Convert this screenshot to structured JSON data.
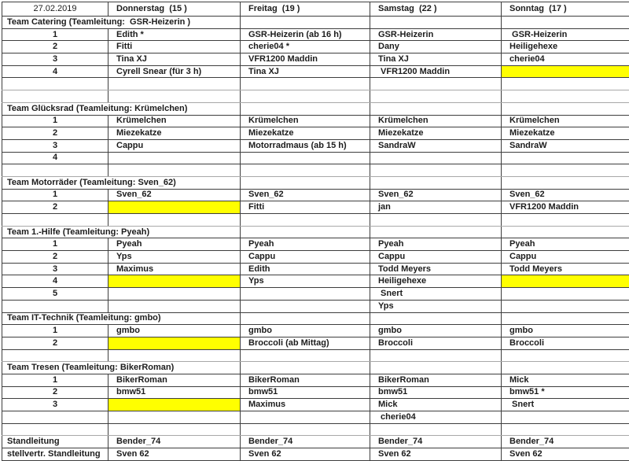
{
  "colors": {
    "highlight": "#ffff00",
    "grid": "#3e3e3e",
    "grid_light": "#a8a8a8",
    "text": "#1c1c1c"
  },
  "header": {
    "date": "27.02.2019",
    "days": [
      "Donnerstag  (15 )",
      "Freitag  (19 )",
      "Samstag  (22 )",
      "Sonntag  (17 )"
    ]
  },
  "rows": [
    {
      "t": "head"
    },
    {
      "t": "section",
      "title": "Team Catering (Teamleitung:  GSR-Heizerin )"
    },
    {
      "t": "data",
      "num": "1",
      "cells": [
        "Edith *",
        "GSR-Heizerin (ab 16 h)",
        "GSR-Heizerin",
        " GSR-Heizerin"
      ],
      "hl": [
        0,
        0,
        0,
        0
      ]
    },
    {
      "t": "data",
      "num": "2",
      "cells": [
        "Fitti",
        "cherie04 *",
        "Dany",
        "Heiligehexe"
      ],
      "hl": [
        0,
        0,
        0,
        0
      ]
    },
    {
      "t": "data",
      "num": "3",
      "cells": [
        "Tina XJ",
        "VFR1200 Maddin",
        "Tina XJ",
        "cherie04"
      ],
      "hl": [
        0,
        0,
        0,
        0
      ]
    },
    {
      "t": "data",
      "num": "4",
      "cells": [
        "Cyrell Snear (für 3 h)",
        "Tina XJ",
        " VFR1200 Maddin",
        ""
      ],
      "hl": [
        0,
        0,
        0,
        1
      ]
    },
    {
      "t": "spacer"
    },
    {
      "t": "spacer"
    },
    {
      "t": "section",
      "title": "Team Glücksrad (Teamleitung: Krümelchen)"
    },
    {
      "t": "data",
      "num": "1",
      "cells": [
        "Krümelchen",
        "Krümelchen",
        "Krümelchen",
        "Krümelchen"
      ],
      "hl": [
        0,
        0,
        0,
        0
      ]
    },
    {
      "t": "data",
      "num": "2",
      "cells": [
        "Miezekatze",
        "Miezekatze",
        "Miezekatze",
        "Miezekatze"
      ],
      "hl": [
        0,
        0,
        0,
        0
      ]
    },
    {
      "t": "data",
      "num": "3",
      "cells": [
        "Cappu",
        "Motorradmaus (ab 15 h)",
        "SandraW",
        "SandraW"
      ],
      "hl": [
        0,
        0,
        0,
        0
      ]
    },
    {
      "t": "data",
      "num": "4",
      "cells": [
        "",
        "",
        "",
        ""
      ],
      "hl": [
        0,
        0,
        0,
        0
      ]
    },
    {
      "t": "spacer"
    },
    {
      "t": "section",
      "title": "Team Motorräder (Teamleitung: Sven_62)"
    },
    {
      "t": "data",
      "num": "1",
      "cells": [
        "Sven_62",
        "Sven_62",
        "Sven_62",
        "Sven_62"
      ],
      "hl": [
        0,
        0,
        0,
        0
      ]
    },
    {
      "t": "data",
      "num": "2",
      "cells": [
        "",
        "Fitti",
        "jan",
        "VFR1200 Maddin"
      ],
      "hl": [
        1,
        0,
        0,
        0
      ]
    },
    {
      "t": "spacer"
    },
    {
      "t": "section",
      "title": "Team 1.-Hilfe (Teamleitung: Pyeah)"
    },
    {
      "t": "data",
      "num": "1",
      "cells": [
        "Pyeah",
        "Pyeah",
        "Pyeah",
        "Pyeah"
      ],
      "hl": [
        0,
        0,
        0,
        0
      ]
    },
    {
      "t": "data",
      "num": "2",
      "cells": [
        "Yps",
        "Cappu",
        "Cappu",
        "Cappu"
      ],
      "hl": [
        0,
        0,
        0,
        0
      ]
    },
    {
      "t": "data",
      "num": "3",
      "cells": [
        "Maximus",
        "Edith",
        "Todd Meyers",
        "Todd Meyers"
      ],
      "hl": [
        0,
        0,
        0,
        0
      ]
    },
    {
      "t": "data",
      "num": "4",
      "cells": [
        "",
        "Yps",
        "Heiligehexe",
        ""
      ],
      "hl": [
        1,
        0,
        0,
        1
      ]
    },
    {
      "t": "data",
      "num": "5",
      "cells": [
        "",
        "",
        " Snert",
        ""
      ],
      "hl": [
        0,
        0,
        0,
        0
      ]
    },
    {
      "t": "data",
      "num": "",
      "cells": [
        "",
        "",
        "Yps",
        ""
      ],
      "hl": [
        0,
        0,
        0,
        0
      ]
    },
    {
      "t": "section",
      "title": "Team IT-Technik (Teamleitung: gmbo)"
    },
    {
      "t": "data",
      "num": "1",
      "cells": [
        "gmbo",
        "gmbo",
        "gmbo",
        "gmbo"
      ],
      "hl": [
        0,
        0,
        0,
        0
      ]
    },
    {
      "t": "data",
      "num": "2",
      "cells": [
        "",
        "Broccoli (ab Mittag)",
        "Broccoli",
        "Broccoli"
      ],
      "hl": [
        1,
        0,
        0,
        0
      ]
    },
    {
      "t": "spacer"
    },
    {
      "t": "section",
      "title": "Team Tresen (Teamleitung: BikerRoman)"
    },
    {
      "t": "data",
      "num": "1",
      "cells": [
        "BikerRoman",
        "BikerRoman",
        "BikerRoman",
        "Mick"
      ],
      "hl": [
        0,
        0,
        0,
        0
      ]
    },
    {
      "t": "data",
      "num": "2",
      "cells": [
        "bmw51",
        "bmw51",
        "bmw51",
        "bmw51 *"
      ],
      "hl": [
        0,
        0,
        0,
        0
      ]
    },
    {
      "t": "data",
      "num": "3",
      "cells": [
        "",
        "Maximus",
        "Mick",
        " Snert"
      ],
      "hl": [
        1,
        0,
        0,
        0
      ]
    },
    {
      "t": "data",
      "num": "",
      "cells": [
        "",
        "",
        " cherie04",
        ""
      ],
      "hl": [
        0,
        0,
        0,
        0
      ]
    },
    {
      "t": "spacer"
    },
    {
      "t": "footer",
      "label": "Standleitung",
      "cells": [
        "Bender_74",
        "Bender_74",
        "Bender_74",
        "Bender_74"
      ]
    },
    {
      "t": "footer",
      "label": "stellvertr. Standleitung",
      "cells": [
        "Sven 62",
        "Sven 62",
        "Sven 62",
        "Sven 62"
      ]
    }
  ]
}
